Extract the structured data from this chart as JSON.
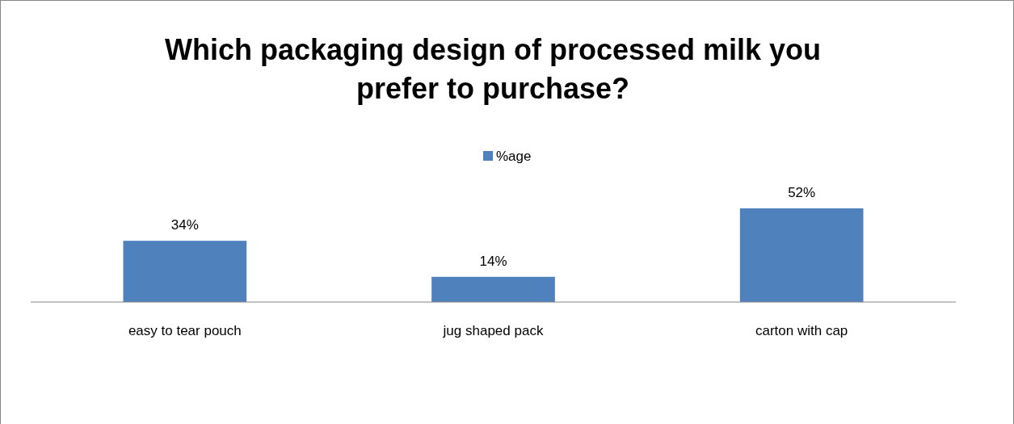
{
  "chart_data": {
    "type": "bar",
    "title": "Which packaging design of processed milk you prefer to purchase?",
    "categories": [
      "easy to tear pouch",
      "jug shaped pack",
      "carton with cap"
    ],
    "series": [
      {
        "name": "%age",
        "color": "#4f81bd",
        "values": [
          34,
          14,
          52
        ],
        "value_labels": [
          "34%",
          "14%",
          "52%"
        ]
      }
    ],
    "legend": "top"
  }
}
